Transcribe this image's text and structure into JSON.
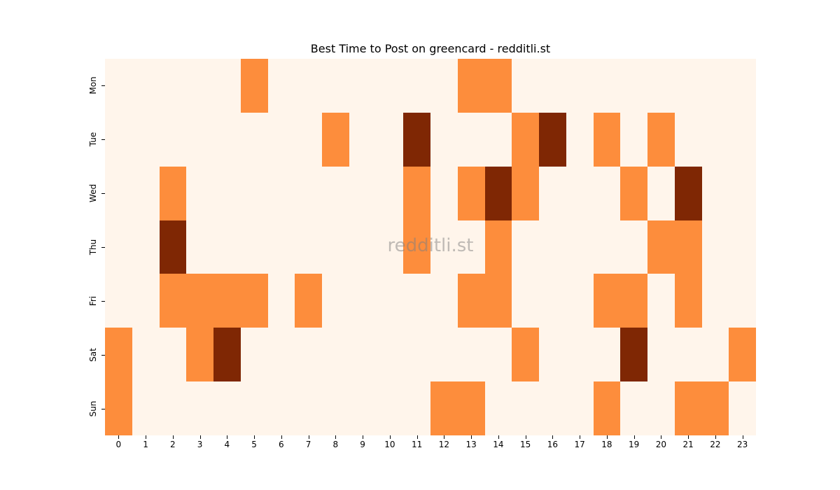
{
  "chart_data": {
    "type": "heatmap",
    "title": "Best Time to Post on greencard - redditli.st",
    "xlabel": "",
    "ylabel": "",
    "x": [
      "0",
      "1",
      "2",
      "3",
      "4",
      "5",
      "6",
      "7",
      "8",
      "9",
      "10",
      "11",
      "12",
      "13",
      "14",
      "15",
      "16",
      "17",
      "18",
      "19",
      "20",
      "21",
      "22",
      "23"
    ],
    "y": [
      "Mon",
      "Tue",
      "Wed",
      "Thu",
      "Fri",
      "Sat",
      "Sun"
    ],
    "colormap": "Oranges",
    "levels": {
      "0": "#fff5eb",
      "1": "#fd8d3c",
      "2": "#7f2704"
    },
    "values": [
      [
        0,
        0,
        0,
        0,
        0,
        1,
        0,
        0,
        0,
        0,
        0,
        0,
        0,
        1,
        1,
        0,
        0,
        0,
        0,
        0,
        0,
        0,
        0,
        0
      ],
      [
        0,
        0,
        0,
        0,
        0,
        0,
        0,
        0,
        1,
        0,
        0,
        2,
        0,
        0,
        0,
        1,
        2,
        0,
        1,
        0,
        1,
        0,
        0,
        0
      ],
      [
        0,
        0,
        1,
        0,
        0,
        0,
        0,
        0,
        0,
        0,
        0,
        1,
        0,
        1,
        2,
        1,
        0,
        0,
        0,
        1,
        0,
        2,
        0,
        0
      ],
      [
        0,
        0,
        2,
        0,
        0,
        0,
        0,
        0,
        0,
        0,
        0,
        1,
        0,
        0,
        1,
        0,
        0,
        0,
        0,
        0,
        1,
        1,
        0,
        0
      ],
      [
        0,
        0,
        1,
        1,
        1,
        1,
        0,
        1,
        0,
        0,
        0,
        0,
        0,
        1,
        1,
        0,
        0,
        0,
        1,
        1,
        0,
        1,
        0,
        0
      ],
      [
        1,
        0,
        0,
        1,
        2,
        0,
        0,
        0,
        0,
        0,
        0,
        0,
        0,
        0,
        0,
        1,
        0,
        0,
        0,
        2,
        0,
        0,
        0,
        1
      ],
      [
        1,
        0,
        0,
        0,
        0,
        0,
        0,
        0,
        0,
        0,
        0,
        0,
        1,
        1,
        0,
        0,
        0,
        0,
        1,
        0,
        0,
        1,
        1,
        0
      ]
    ],
    "colorbar": false,
    "grid": false
  },
  "watermark": "redditli.st"
}
